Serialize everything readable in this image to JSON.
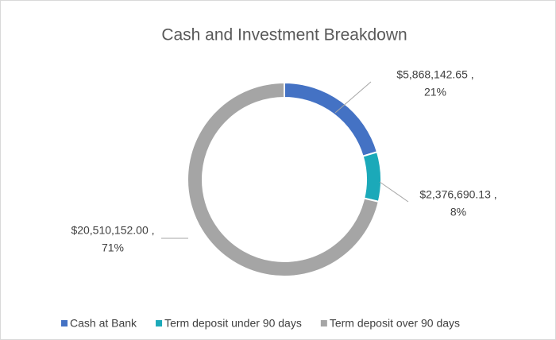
{
  "chart_data": {
    "type": "donut",
    "title": "Cash and Investment Breakdown",
    "categories": [
      "Cash at Bank",
      "Term deposit under 90 days",
      "Term deposit over 90 days"
    ],
    "values": [
      5868142.65,
      2376690.13,
      20510152.0
    ],
    "value_labels": [
      "$5,868,142.65 ,",
      "$2,376,690.13 ,",
      "$20,510,152.00 ,"
    ],
    "percents": [
      21,
      8,
      71
    ],
    "percent_labels": [
      "21%",
      "8%",
      "71%"
    ],
    "colors": [
      "#4472c4",
      "#1ba9b9",
      "#a5a5a5"
    ],
    "legend": "bottom"
  }
}
